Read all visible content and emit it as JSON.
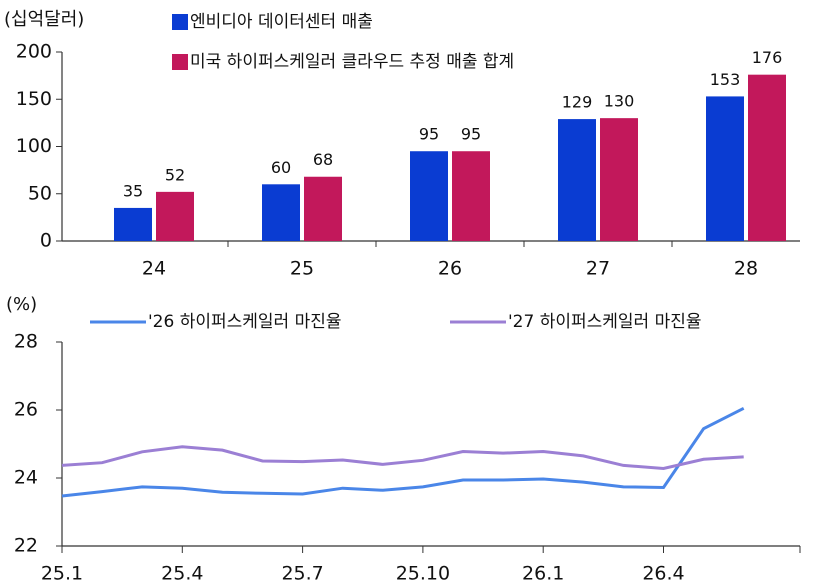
{
  "chart_data": [
    {
      "type": "bar",
      "y_label": "(십억달러)",
      "categories": [
        "24",
        "25",
        "26",
        "27",
        "28"
      ],
      "series": [
        {
          "name": "엔비디아 데이터센터 매출",
          "color": "#0a3cd2",
          "values": [
            35,
            60,
            95,
            129,
            153
          ]
        },
        {
          "name": "미국 하이퍼스케일러 클라우드 추정 매출 합계",
          "color": "#c2185b",
          "values": [
            52,
            68,
            95,
            130,
            176
          ]
        }
      ],
      "ylim": [
        0,
        200
      ],
      "yticks": [
        0,
        50,
        100,
        150,
        200
      ]
    },
    {
      "type": "line",
      "y_label": "(%)",
      "categories": [
        "25.1",
        null,
        null,
        "25.4",
        null,
        null,
        "25.7",
        null,
        null,
        "25.10",
        null,
        null,
        "26.1",
        null,
        null,
        "26.4",
        null,
        null
      ],
      "series": [
        {
          "name": "'26 하이퍼스케일러 마진율",
          "color": "#4a86e8",
          "values": [
            23.47,
            23.6,
            23.74,
            23.7,
            23.58,
            23.55,
            23.53,
            23.7,
            23.64,
            23.74,
            23.94,
            23.94,
            23.97,
            23.88,
            23.74,
            23.72,
            25.45,
            26.05
          ]
        },
        {
          "name": "'27 하이퍼스케일러 마진율",
          "color": "#9b7fd4",
          "values": [
            24.37,
            24.45,
            24.77,
            24.92,
            24.82,
            24.5,
            24.48,
            24.53,
            24.4,
            24.52,
            24.78,
            24.73,
            24.78,
            24.65,
            24.37,
            24.28,
            24.55,
            24.62
          ]
        }
      ],
      "ylim": [
        22,
        28
      ],
      "yticks": [
        22,
        24,
        26,
        28
      ]
    }
  ]
}
